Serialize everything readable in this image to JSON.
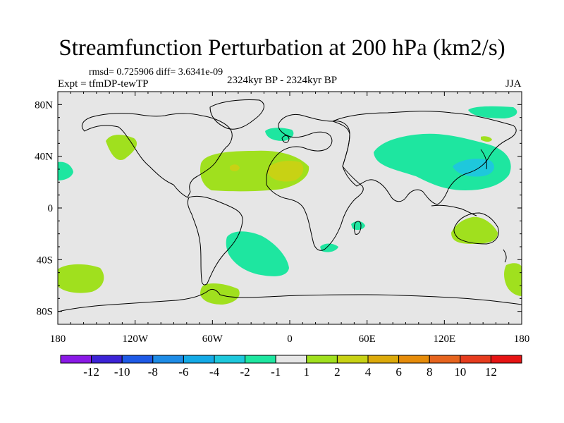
{
  "title": "Streamfunction Perturbation at 200 hPa (km2/s)",
  "stats_line": "rmsd= 0.725906  diff= 3.6341e-09",
  "experiment_line": "Expt = tfmDP-tewTP",
  "period_line": "2324kyr BP - 2324kyr BP",
  "season": "JJA",
  "map": {
    "lon_labels": [
      "180",
      "120W",
      "60W",
      "0",
      "60E",
      "120E",
      "180"
    ],
    "lat_labels": [
      "80N",
      "40N",
      "0",
      "40S",
      "80S"
    ]
  },
  "colorbar": {
    "labels": [
      "-12",
      "-10",
      "-8",
      "-6",
      "-4",
      "-2",
      "-1",
      "1",
      "2",
      "4",
      "6",
      "8",
      "10",
      "12"
    ],
    "colors": [
      "#8a19e6",
      "#3c23d6",
      "#1e5ae6",
      "#1e8ce6",
      "#14aae6",
      "#1ec8dc",
      "#1ee6a0",
      "#e6e6e6",
      "#a0e01e",
      "#c8d214",
      "#dcaa0a",
      "#e68c0a",
      "#e6641e",
      "#e63c1e",
      "#e61414"
    ]
  },
  "colors": {
    "ocean": "#e6e6e6",
    "positive_1_2": "#a0e01e",
    "positive_2_4": "#c8d214",
    "negative_1_2": "#1ee6a0",
    "negative_2_4": "#1ec8dc"
  }
}
